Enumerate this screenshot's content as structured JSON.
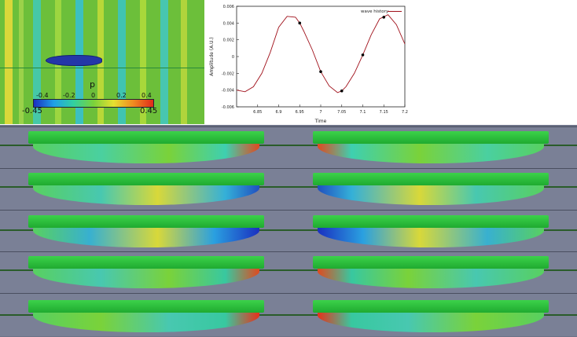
{
  "scale": {
    "label": "p",
    "ticks": [
      "-0.4",
      "-0.2",
      "0",
      "0.2",
      "0.4"
    ],
    "min_label": "-0.45",
    "max_label": "0.45"
  },
  "chart_data": {
    "type": "line",
    "title": "",
    "xlabel": "Time",
    "ylabel": "Amplitude (A.U.)",
    "xlim": [
      6.8,
      7.2
    ],
    "ylim": [
      -0.006,
      0.006
    ],
    "xticks": [
      "6.85",
      "6.9",
      "6.95",
      "7",
      "7.05",
      "7.1",
      "7.15",
      "7.2"
    ],
    "yticks": [
      "0.006",
      "0.004",
      "0.002",
      "0",
      "-0.002",
      "-0.004",
      "-0.006"
    ],
    "legend": {
      "placement": "top-right",
      "entries": [
        "wave history"
      ]
    },
    "series": [
      {
        "name": "wave history",
        "color": "#a0101a",
        "x": [
          6.8,
          6.82,
          6.84,
          6.86,
          6.88,
          6.9,
          6.92,
          6.94,
          6.95,
          6.96,
          6.98,
          7.0,
          7.02,
          7.04,
          7.05,
          7.06,
          7.08,
          7.1,
          7.12,
          7.14,
          7.16,
          7.18,
          7.2
        ],
        "y": [
          -0.004,
          -0.0042,
          -0.0036,
          -0.002,
          0.0005,
          0.0035,
          0.0048,
          0.0047,
          0.004,
          0.003,
          0.0008,
          -0.0018,
          -0.0035,
          -0.0043,
          -0.0041,
          -0.0036,
          -0.002,
          0.0002,
          0.0026,
          0.0045,
          0.005,
          0.0038,
          0.0015
        ]
      }
    ],
    "markers": [
      {
        "x": 6.95,
        "y": 0.004
      },
      {
        "x": 7.0,
        "y": -0.0018
      },
      {
        "x": 7.05,
        "y": -0.0041
      },
      {
        "x": 7.1,
        "y": 0.0002
      },
      {
        "x": 7.15,
        "y": 0.0047
      }
    ]
  },
  "colors": {
    "low": "#1a2fc0",
    "mid": "#7ad23a",
    "high": "#e02a1a",
    "hull_deck": "#2fc040",
    "panel_bg": "#7a8096"
  }
}
